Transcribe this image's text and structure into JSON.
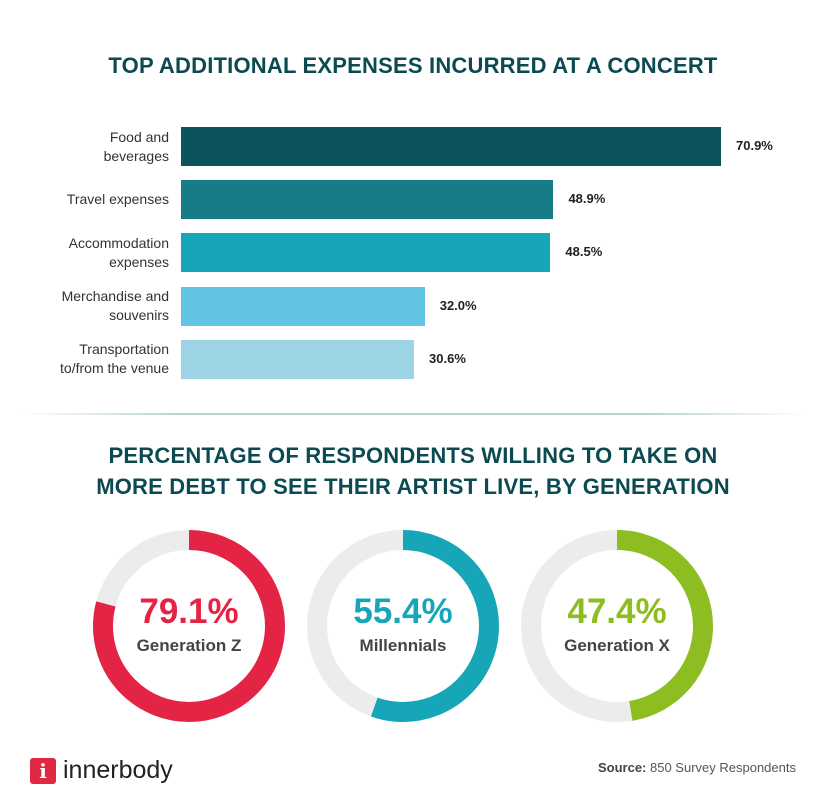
{
  "chart_data": [
    {
      "type": "bar",
      "orientation": "horizontal",
      "title": "TOP ADDITIONAL EXPENSES INCURRED AT A CONCERT",
      "categories": [
        "Food and beverages",
        "Travel expenses",
        "Accommodation expenses",
        "Merchandise and souvenirs",
        "Transportation to/from the venue"
      ],
      "category_lines": [
        [
          "Food and",
          "beverages"
        ],
        [
          "Travel expenses"
        ],
        [
          "Accommodation",
          "expenses"
        ],
        [
          "Merchandise and",
          "souvenirs"
        ],
        [
          "Transportation",
          "to/from the venue"
        ]
      ],
      "values": [
        70.9,
        48.9,
        48.5,
        32.0,
        30.6
      ],
      "data_labels": [
        "70.9%",
        "48.9%",
        "48.5%",
        "32.0%",
        "30.6%"
      ],
      "colors": [
        "#0b545e",
        "#167c88",
        "#17a6b9",
        "#60c4e2",
        "#9cd4e6"
      ],
      "unit": "%"
    },
    {
      "type": "pie",
      "variant": "donut",
      "title": "PERCENTAGE OF RESPONDENTS WILLING TO TAKE ON MORE DEBT TO SEE THEIR ARTIST LIVE, BY GENERATION",
      "title_lines": [
        "PERCENTAGE OF RESPONDENTS WILLING TO TAKE ON",
        "MORE DEBT TO SEE THEIR ARTIST LIVE, BY GENERATION"
      ],
      "items": [
        {
          "label": "Generation Z",
          "value": 79.1,
          "display": "79.1%",
          "color": "#e42445"
        },
        {
          "label": "Millennials",
          "value": 55.4,
          "display": "55.4%",
          "color": "#17a5b8"
        },
        {
          "label": "Generation X",
          "value": 47.4,
          "display": "47.4%",
          "color": "#8ebd22"
        }
      ],
      "track_color": "#ececec"
    }
  ],
  "footer": {
    "brand": "innerbody",
    "brand_icon": "i",
    "source_label": "Source:",
    "source_text": " 850 Survey Respondents"
  }
}
